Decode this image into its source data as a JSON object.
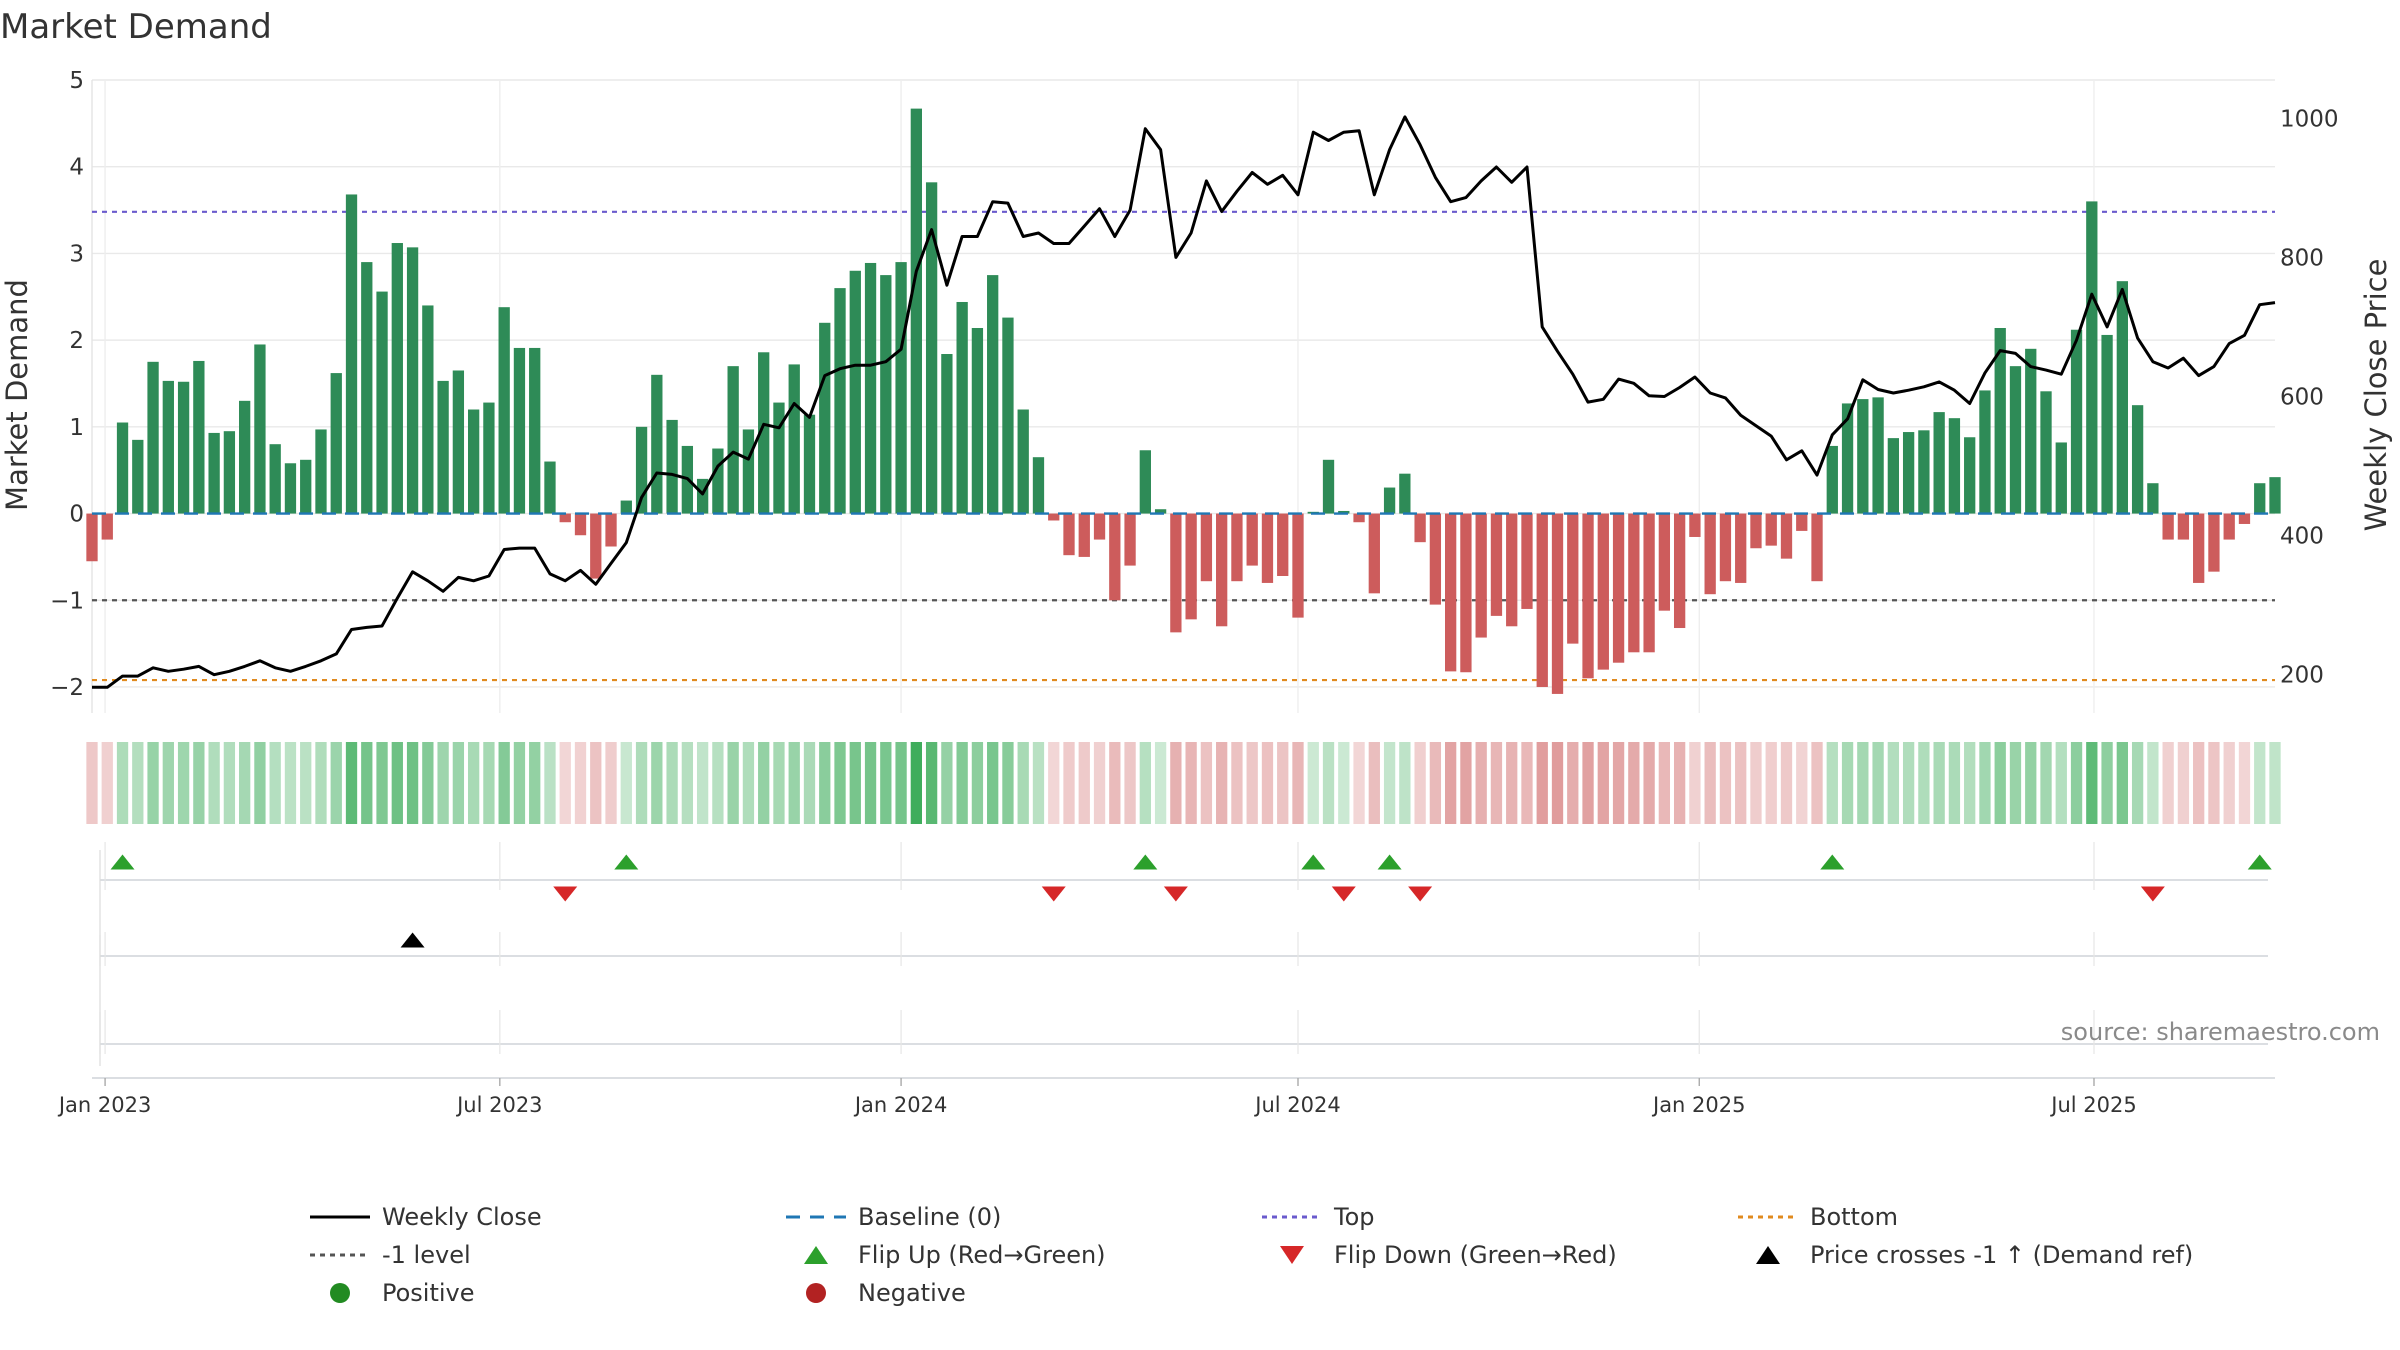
{
  "chart_data": {
    "type": "bar",
    "title": "Market Demand",
    "ylabel": "Market Demand",
    "y2label": "Weekly Close Price",
    "source": "source: sharemaestro.com",
    "ylim": [
      -2.3,
      5
    ],
    "y2lim": [
      145,
      1055
    ],
    "yticks": [
      5,
      4,
      3,
      2,
      1,
      0,
      -1,
      -2
    ],
    "ytick_labels": [
      "5",
      "4",
      "3",
      "2",
      "1",
      "0",
      "−1",
      "−2"
    ],
    "y2ticks": [
      1000,
      800,
      600,
      400,
      200
    ],
    "y2tick_labels": [
      "1000",
      "800",
      "600",
      "400",
      "200"
    ],
    "x_start": "2022-12-26",
    "x_end": "2025-09-22",
    "xticks": [
      "2023-01-01",
      "2023-07-01",
      "2024-01-01",
      "2024-07-01",
      "2025-01-01",
      "2025-07-01"
    ],
    "xtick_labels": [
      "Jan 2023",
      "Jul 2023",
      "Jan 2024",
      "Jul 2024",
      "Jan 2025",
      "Jul 2025"
    ],
    "grid": true,
    "legend_position": "bottom",
    "levels": {
      "top": 3.48,
      "minus_one": -1.0,
      "bottom": -1.92,
      "baseline": 0
    },
    "colors": {
      "positive": "#2e8b57",
      "negative": "#cd5c5c",
      "price": "#000000",
      "baseline": "#1f77b4",
      "top": "#6a5acd",
      "minus_one": "#555555",
      "bottom": "#e08a1e",
      "flip_up": "#2ca02c",
      "flip_down": "#d62728",
      "cross": "#000000"
    },
    "series": [
      {
        "name": "Market Demand",
        "start": "2022-12-26",
        "step_days": 7,
        "values": [
          -0.55,
          -0.3,
          1.05,
          0.85,
          1.75,
          1.53,
          1.52,
          1.76,
          0.93,
          0.95,
          1.3,
          1.95,
          0.8,
          0.58,
          0.62,
          0.97,
          1.62,
          3.68,
          2.9,
          2.56,
          3.12,
          3.07,
          2.4,
          1.53,
          1.65,
          1.2,
          1.28,
          2.38,
          1.91,
          1.91,
          0.6,
          -0.1,
          -0.25,
          -0.75,
          -0.38,
          0.15,
          1.0,
          1.6,
          1.08,
          0.78,
          0.4,
          0.75,
          1.7,
          0.97,
          1.86,
          1.28,
          1.72,
          1.14,
          2.2,
          2.6,
          2.8,
          2.89,
          2.75,
          2.9,
          4.67,
          3.82,
          1.84,
          2.44,
          2.14,
          2.75,
          2.26,
          1.2,
          0.65,
          -0.08,
          -0.48,
          -0.5,
          -0.3,
          -1.0,
          -0.6,
          0.73,
          0.05,
          -1.37,
          -1.22,
          -0.78,
          -1.3,
          -0.78,
          -0.6,
          -0.8,
          -0.72,
          -1.2,
          0.02,
          0.62,
          0.03,
          -0.1,
          -0.92,
          0.3,
          0.46,
          -0.33,
          -1.05,
          -1.82,
          -1.83,
          -1.43,
          -1.18,
          -1.3,
          -1.1,
          -2.0,
          -2.08,
          -1.5,
          -1.9,
          -1.8,
          -1.72,
          -1.6,
          -1.6,
          -1.12,
          -1.32,
          -0.27,
          -0.93,
          -0.78,
          -0.8,
          -0.4,
          -0.37,
          -0.52,
          -0.2,
          -0.78,
          0.78,
          1.27,
          1.32,
          1.34,
          0.87,
          0.94,
          0.96,
          1.17,
          1.1,
          0.88,
          1.42,
          2.14,
          1.7,
          1.9,
          1.41,
          0.82,
          2.12,
          3.6,
          2.06,
          2.68,
          1.25,
          0.35,
          -0.3,
          -0.3,
          -0.8,
          -0.67,
          -0.3,
          -0.12,
          0.35,
          0.42
        ]
      },
      {
        "name": "Weekly Close",
        "type": "line",
        "axis": "right",
        "start": "2022-12-26",
        "step_days": 7,
        "values": [
          182,
          182,
          198,
          198,
          210,
          205,
          208,
          212,
          200,
          205,
          212,
          220,
          210,
          205,
          212,
          220,
          230,
          265,
          268,
          270,
          310,
          348,
          335,
          320,
          340,
          335,
          342,
          380,
          382,
          382,
          345,
          335,
          350,
          330,
          360,
          390,
          455,
          490,
          488,
          482,
          460,
          500,
          520,
          510,
          560,
          555,
          590,
          570,
          630,
          640,
          645,
          645,
          650,
          668,
          780,
          840,
          760,
          830,
          830,
          880,
          878,
          830,
          835,
          820,
          820,
          845,
          870,
          830,
          868,
          985,
          955,
          800,
          835,
          910,
          866,
          895,
          922,
          905,
          918,
          890,
          980,
          968,
          980,
          982,
          890,
          955,
          1002,
          962,
          915,
          880,
          886,
          910,
          930,
          908,
          930,
          700,
          665,
          632,
          592,
          596,
          625,
          619,
          601,
          600,
          613,
          628,
          605,
          598,
          573,
          558,
          543,
          509,
          522,
          487,
          545,
          568,
          624,
          610,
          605,
          609,
          614,
          621,
          609,
          590,
          634,
          666,
          662,
          643,
          638,
          632,
          681,
          747,
          700,
          754,
          684,
          650,
          641,
          655,
          630,
          643,
          676,
          688,
          732,
          735
        ]
      }
    ],
    "flip_up_weeks": [
      2,
      35,
      69,
      80,
      85,
      114,
      142
    ],
    "flip_down_weeks": [
      31,
      63,
      71,
      82,
      87,
      135
    ],
    "cross_weeks": [
      21
    ],
    "legend": [
      "Weekly Close",
      "Baseline (0)",
      "Top",
      "Bottom",
      "-1 level",
      "Flip Up (Red→Green)",
      "Flip Down (Green→Red)",
      "Price crosses -1 ↑ (Demand ref)",
      "Positive",
      "Negative"
    ]
  }
}
